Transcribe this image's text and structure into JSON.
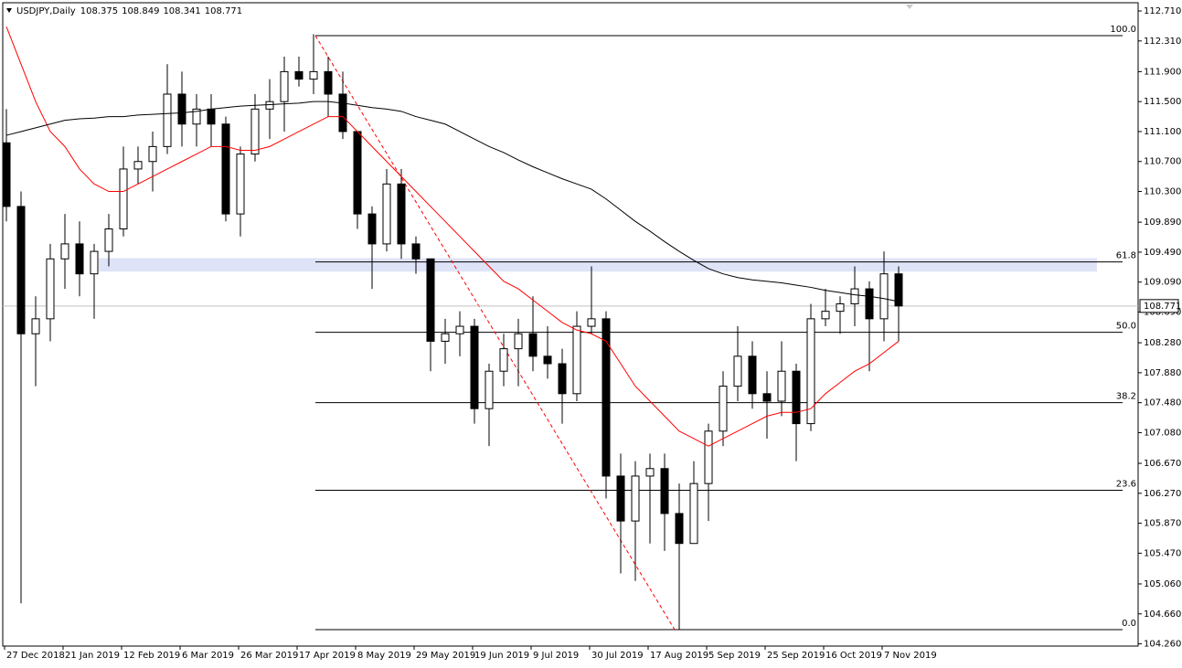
{
  "chart_data": {
    "type": "candlestick",
    "symbol": "USDJPY,Daily",
    "header_ohlc": [
      108.375,
      108.849,
      108.341,
      108.771
    ],
    "last_price": 108.771,
    "up_color": "#ffffff",
    "down_color": "#000000",
    "outline_color": "#000000",
    "categories": [
      "27 Dec 2018",
      null,
      null,
      null,
      "21 Jan 2019",
      null,
      null,
      null,
      "12 Feb 2019",
      null,
      null,
      null,
      "6 Mar 2019",
      null,
      null,
      null,
      "26 Mar 2019",
      null,
      null,
      null,
      "17 Apr 2019",
      null,
      null,
      null,
      "8 May 2019",
      null,
      null,
      null,
      "29 May 2019",
      null,
      null,
      null,
      "19 Jun 2019",
      null,
      null,
      null,
      "9 Jul 2019",
      null,
      null,
      null,
      "30 Jul 2019",
      null,
      null,
      null,
      "17 Aug 2019",
      null,
      null,
      null,
      "5 Sep 2019",
      null,
      null,
      null,
      "25 Sep 2019",
      null,
      null,
      null,
      "16 Oct 2019",
      null,
      null,
      null,
      "7 Nov 2019",
      null
    ],
    "open": [
      110.95,
      110.1,
      108.4,
      108.6,
      109.4,
      109.6,
      109.2,
      109.5,
      109.8,
      110.6,
      110.7,
      110.9,
      111.6,
      111.2,
      111.4,
      111.2,
      110.0,
      110.8,
      111.4,
      111.5,
      111.9,
      111.8,
      111.9,
      111.6,
      111.1,
      110.0,
      109.6,
      110.4,
      109.6,
      109.4,
      108.3,
      108.4,
      108.5,
      107.4,
      107.9,
      108.2,
      108.4,
      108.1,
      108.0,
      107.6,
      108.5,
      108.6,
      106.5,
      105.9,
      106.5,
      106.6,
      106.0,
      105.6,
      106.4,
      107.1,
      107.7,
      108.1,
      107.6,
      107.5,
      107.9,
      107.2,
      108.6,
      108.7,
      108.8,
      109.0,
      108.6,
      109.2
    ],
    "high": [
      111.4,
      110.3,
      108.9,
      109.6,
      110.0,
      109.9,
      109.6,
      110.0,
      110.9,
      110.9,
      111.1,
      112.0,
      111.9,
      111.6,
      111.6,
      111.3,
      110.9,
      111.6,
      111.8,
      112.1,
      112.1,
      112.4,
      112.1,
      111.9,
      111.1,
      110.1,
      110.6,
      110.6,
      109.7,
      109.4,
      108.6,
      108.7,
      108.6,
      108.0,
      108.4,
      108.6,
      108.9,
      108.5,
      108.2,
      108.7,
      109.3,
      108.7,
      106.8,
      106.7,
      106.8,
      106.8,
      106.4,
      106.7,
      107.2,
      107.9,
      108.5,
      108.3,
      107.9,
      108.3,
      108.0,
      108.8,
      109.0,
      108.9,
      109.3,
      109.1,
      109.5,
      109.3
    ],
    "low": [
      109.9,
      104.8,
      107.7,
      108.3,
      109.0,
      108.9,
      108.6,
      109.3,
      109.7,
      110.4,
      110.3,
      110.8,
      110.9,
      110.9,
      110.9,
      109.9,
      109.7,
      110.7,
      111.0,
      111.1,
      111.7,
      111.6,
      111.3,
      111.0,
      109.8,
      109.0,
      109.5,
      109.4,
      109.2,
      107.9,
      108.0,
      108.1,
      107.2,
      106.9,
      107.7,
      107.7,
      107.9,
      107.8,
      107.2,
      107.5,
      108.4,
      106.2,
      105.2,
      105.1,
      105.6,
      105.5,
      104.45,
      105.6,
      105.9,
      106.9,
      107.5,
      107.4,
      107.0,
      107.3,
      106.7,
      107.1,
      108.5,
      108.4,
      108.5,
      107.9,
      108.3,
      108.3
    ],
    "close": [
      110.1,
      108.4,
      108.6,
      109.4,
      109.6,
      109.2,
      109.5,
      109.8,
      110.6,
      110.7,
      110.9,
      111.6,
      111.2,
      111.4,
      111.2,
      110.0,
      110.8,
      111.4,
      111.5,
      111.9,
      111.8,
      111.9,
      111.6,
      111.1,
      110.0,
      109.6,
      110.4,
      109.6,
      109.4,
      108.3,
      108.4,
      108.5,
      107.4,
      107.9,
      108.2,
      108.4,
      108.1,
      108.0,
      107.6,
      108.5,
      108.6,
      106.5,
      105.9,
      106.5,
      106.6,
      106.0,
      105.6,
      106.4,
      107.1,
      107.7,
      108.1,
      107.6,
      107.5,
      107.9,
      107.2,
      108.6,
      108.7,
      108.8,
      109.0,
      108.6,
      109.2,
      108.771
    ],
    "moving_averages": [
      {
        "color": "#ff0000",
        "values": [
          112.5,
          112.0,
          111.5,
          111.1,
          110.9,
          110.6,
          110.4,
          110.3,
          110.3,
          110.4,
          110.5,
          110.6,
          110.7,
          110.8,
          110.9,
          110.9,
          110.85,
          110.85,
          110.9,
          111.0,
          111.1,
          111.2,
          111.3,
          111.3,
          111.1,
          110.9,
          110.7,
          110.5,
          110.3,
          110.1,
          109.9,
          109.7,
          109.5,
          109.3,
          109.1,
          109.0,
          108.85,
          108.7,
          108.55,
          108.45,
          108.4,
          108.3,
          108.0,
          107.7,
          107.5,
          107.3,
          107.1,
          107.0,
          106.9,
          107.0,
          107.1,
          107.2,
          107.3,
          107.35,
          107.35,
          107.4,
          107.6,
          107.75,
          107.9,
          108.0,
          108.15,
          108.3
        ]
      },
      {
        "color": "#000000",
        "values": [
          111.05,
          111.1,
          111.15,
          111.2,
          111.25,
          111.27,
          111.28,
          111.3,
          111.3,
          111.32,
          111.33,
          111.34,
          111.35,
          111.37,
          111.4,
          111.42,
          111.44,
          111.45,
          111.46,
          111.47,
          111.48,
          111.5,
          111.5,
          111.48,
          111.45,
          111.42,
          111.4,
          111.37,
          111.3,
          111.25,
          111.2,
          111.1,
          111.0,
          110.9,
          110.82,
          110.72,
          110.63,
          110.55,
          110.47,
          110.4,
          110.33,
          110.2,
          110.05,
          109.9,
          109.77,
          109.63,
          109.5,
          109.38,
          109.27,
          109.2,
          109.15,
          109.12,
          109.1,
          109.08,
          109.05,
          109.02,
          108.98,
          108.95,
          108.92,
          108.9,
          108.87,
          108.83
        ]
      }
    ],
    "fibonacci": [
      {
        "label": "100.0",
        "price": 112.38
      },
      {
        "label": "61.8",
        "price": 109.36
      },
      {
        "label": "50.0",
        "price": 108.42
      },
      {
        "label": "38.2",
        "price": 107.48
      },
      {
        "label": "23.6",
        "price": 106.31
      },
      {
        "label": "0.0",
        "price": 104.45
      }
    ],
    "zone": {
      "color": "#dfe3f7",
      "range": [
        109.23,
        109.41
      ]
    },
    "ylim": [
      104.23,
      112.82
    ],
    "yticks": [
      {
        "value": 112.71,
        "label": "112.710"
      },
      {
        "value": 112.31,
        "label": "112.310"
      },
      {
        "value": 111.9,
        "label": "111.900"
      },
      {
        "value": 111.5,
        "label": "111.500"
      },
      {
        "value": 111.1,
        "label": "111.100"
      },
      {
        "value": 110.7,
        "label": "110.700"
      },
      {
        "value": 110.3,
        "label": "110.300"
      },
      {
        "value": 109.89,
        "label": "109.890"
      },
      {
        "value": 109.49,
        "label": "109.490"
      },
      {
        "value": 109.09,
        "label": "109.090"
      },
      {
        "value": 108.69,
        "label": "108.690"
      },
      {
        "value": 108.28,
        "label": "108.280"
      },
      {
        "value": 107.88,
        "label": "107.880"
      },
      {
        "value": 107.48,
        "label": "107.480"
      },
      {
        "value": 107.08,
        "label": "107.080"
      },
      {
        "value": 106.67,
        "label": "106.670"
      },
      {
        "value": 106.27,
        "label": "106.270"
      },
      {
        "value": 105.87,
        "label": "105.870"
      },
      {
        "value": 105.47,
        "label": "105.470"
      },
      {
        "value": 105.06,
        "label": "105.060"
      },
      {
        "value": 104.66,
        "label": "104.660"
      },
      {
        "value": 104.26,
        "label": "104.260"
      }
    ],
    "grid": false
  }
}
